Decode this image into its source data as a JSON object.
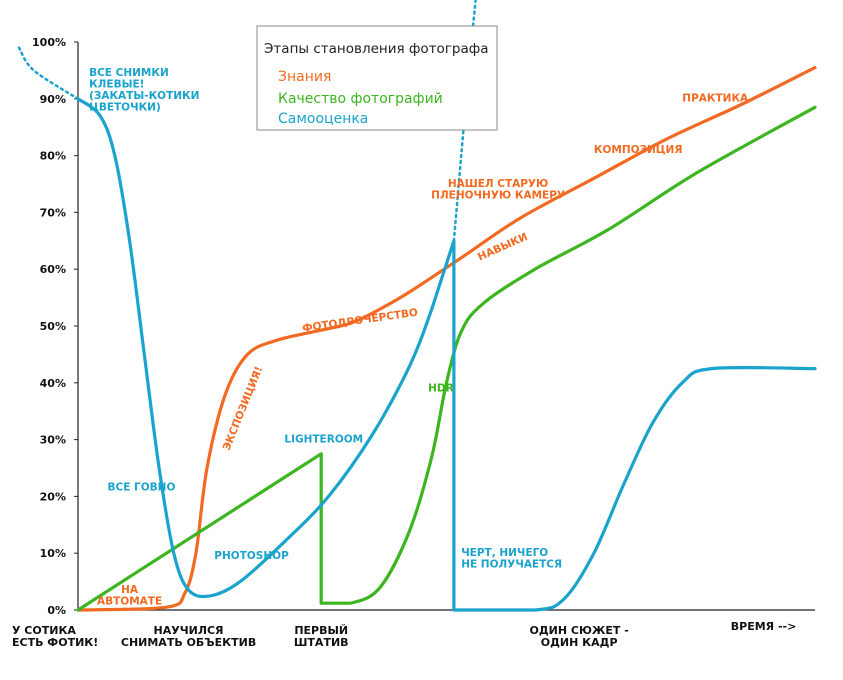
{
  "chart_data": {
    "type": "line",
    "legend": {
      "title": "Этапы становления фотографа",
      "placement": "top-center",
      "entries": [
        {
          "key": "knowledge",
          "label": "Знания",
          "color": "#f26a21"
        },
        {
          "key": "quality",
          "label": "Качество фотографий",
          "color": "#3cb51f"
        },
        {
          "key": "selfesteem",
          "label": "Самооценка",
          "color": "#1aa3cc"
        }
      ]
    },
    "yticks": [
      "0%",
      "10%",
      "20%",
      "30%",
      "40%",
      "50%",
      "60%",
      "70%",
      "80%",
      "90%",
      "100%"
    ],
    "ylim": [
      0,
      100
    ],
    "xlim": [
      0,
      100
    ],
    "xlabels": [
      {
        "x": 0,
        "lines": [
          "У СОТИКА",
          "ЕСТЬ ФОТИК!"
        ]
      },
      {
        "x": 15,
        "lines": [
          "НАУЧИЛСЯ",
          "СНИМАТЬ ОБЪЕКТИВ"
        ]
      },
      {
        "x": 33,
        "lines": [
          "ПЕРВЫЙ",
          "ШТАТИВ"
        ]
      },
      {
        "x": 68,
        "lines": [
          "ОДИН СЮЖЕТ -",
          "ОДИН КАДР"
        ]
      },
      {
        "x": 94,
        "lines": [
          "ВРЕМЯ -->"
        ]
      }
    ],
    "series": [
      {
        "name": "Знания",
        "color": "#f26a21",
        "points": [
          [
            0,
            0
          ],
          [
            12,
            0.5
          ],
          [
            14.5,
            3
          ],
          [
            16,
            10
          ],
          [
            17.5,
            25
          ],
          [
            20,
            38
          ],
          [
            23,
            45
          ],
          [
            27,
            47.5
          ],
          [
            32,
            49
          ],
          [
            37,
            50.5
          ],
          [
            41,
            53
          ],
          [
            45,
            56
          ],
          [
            52,
            62
          ],
          [
            60,
            69
          ],
          [
            70,
            76
          ],
          [
            80,
            83
          ],
          [
            90,
            89
          ],
          [
            100,
            95.5
          ]
        ]
      },
      {
        "name": "Качество фотографий",
        "color": "#3cb51f",
        "points": [
          [
            0,
            0
          ],
          [
            33,
            27.5
          ],
          [
            33,
            1.2
          ],
          [
            37,
            1.2
          ],
          [
            41,
            4
          ],
          [
            45,
            14
          ],
          [
            48,
            27
          ],
          [
            50,
            40
          ],
          [
            52,
            49
          ],
          [
            55,
            54
          ],
          [
            62,
            60
          ],
          [
            72,
            67
          ],
          [
            84,
            77
          ],
          [
            100,
            88.5
          ]
        ]
      },
      {
        "name": "Самооценка",
        "color": "#1aa3cc",
        "dashed_start": [
          [
            -8,
            99
          ],
          [
            -6,
            95
          ],
          [
            0,
            90
          ]
        ],
        "points": [
          [
            0,
            90
          ],
          [
            3,
            87
          ],
          [
            5,
            80
          ],
          [
            7,
            65
          ],
          [
            9,
            45
          ],
          [
            11,
            25
          ],
          [
            13,
            10
          ],
          [
            15,
            3.5
          ],
          [
            18,
            2.5
          ],
          [
            22,
            5
          ],
          [
            28,
            12
          ],
          [
            34,
            20
          ],
          [
            40,
            31
          ],
          [
            45,
            43
          ],
          [
            48,
            53
          ],
          [
            51,
            65
          ],
          [
            51,
            0
          ],
          [
            62,
            0
          ],
          [
            66,
            2
          ],
          [
            70,
            10
          ],
          [
            74,
            22
          ],
          [
            78,
            33
          ],
          [
            82,
            40
          ],
          [
            86,
            42.5
          ],
          [
            100,
            42.5
          ]
        ],
        "dashed_end": [
          [
            51,
            65
          ],
          [
            52,
            80
          ],
          [
            53,
            95
          ],
          [
            54,
            108
          ]
        ]
      }
    ],
    "annotations": [
      {
        "series": "selfesteem",
        "x": 1.5,
        "y": 94,
        "lines": [
          "ВСЕ СНИМКИ",
          "КЛЕВЫЕ!",
          "(ЗАКАТЫ-КОТИКИ",
          "ЦВЕТОЧКИ)"
        ]
      },
      {
        "series": "selfesteem",
        "x": 4,
        "y": 21,
        "lines": [
          "ВСЕ ГОВНО"
        ]
      },
      {
        "series": "selfesteem",
        "x": 18.5,
        "y": 9,
        "lines": [
          "PHOTOSHOP"
        ]
      },
      {
        "series": "selfesteem",
        "x": 28,
        "y": 29.5,
        "lines": [
          "LIGHTEROOM"
        ]
      },
      {
        "series": "selfesteem",
        "x": 52,
        "y": 9.5,
        "lines": [
          "ЧЕРТ, НИЧЕГО",
          "НЕ ПОЛУЧАЕТСЯ"
        ]
      },
      {
        "series": "quality",
        "x": 47.5,
        "y": 38.5,
        "lines": [
          "HDR"
        ]
      },
      {
        "series": "knowledge",
        "x": 7,
        "y": 3,
        "lines": [
          "НА",
          "АВТОМАТЕ"
        ]
      },
      {
        "series": "knowledge",
        "x": 20.5,
        "y": 28,
        "rotate": -68,
        "lines": [
          "ЭКСПОЗИЦИЯ!"
        ]
      },
      {
        "series": "knowledge",
        "x": 30.5,
        "y": 49,
        "rotate": -8,
        "lines": [
          "ФОТОДРОЧЕРСТВО"
        ]
      },
      {
        "series": "knowledge",
        "x": 54.5,
        "y": 61.5,
        "rotate": -24,
        "lines": [
          "НАВЫКИ"
        ]
      },
      {
        "series": "knowledge",
        "x": 57,
        "y": 74.5,
        "lines": [
          "НАШЕЛ СТАРУЮ",
          "ПЛЕНОЧНУЮ КАМЕРУ"
        ]
      },
      {
        "series": "knowledge",
        "x": 70,
        "y": 80.5,
        "lines": [
          "КОМПОЗИЦИЯ"
        ]
      },
      {
        "series": "knowledge",
        "x": 82,
        "y": 89.5,
        "lines": [
          "ПРАКТИКА"
        ]
      }
    ]
  }
}
